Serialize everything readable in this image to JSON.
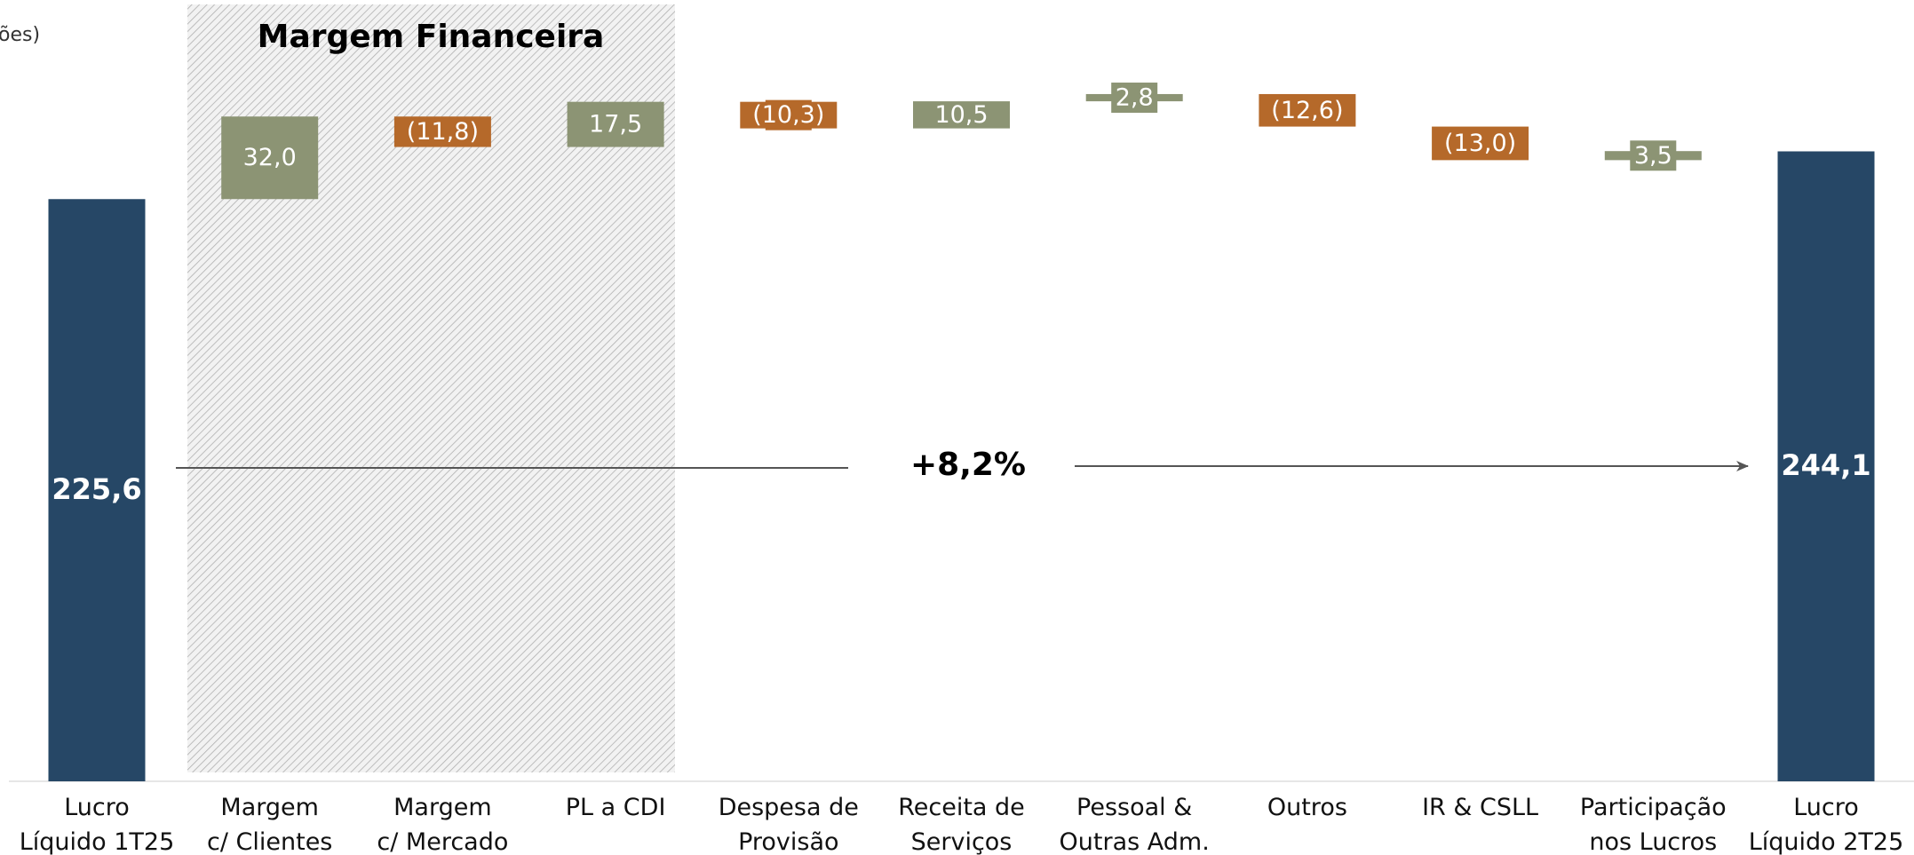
{
  "chart_data": {
    "type": "waterfall",
    "unit_label": "ões)",
    "categories": [
      "Lucro\nLíquido 1T25",
      "Margem\nc/ Clientes",
      "Margem\nc/ Mercado",
      "PL a CDI",
      "Despesa de\nProvisão",
      "Receita de\nServiços",
      "Pessoal &\nOutras Adm.",
      "Outros",
      "IR & CSLL",
      "Participação\nnos Lucros",
      "Lucro\nLíquido 2T25"
    ],
    "values": [
      225.6,
      32.0,
      -11.8,
      17.5,
      -10.3,
      10.5,
      2.8,
      -12.6,
      -13.0,
      3.5,
      244.1
    ],
    "value_labels": [
      "225,6",
      "32,0",
      "(11,8)",
      "17,5",
      "(10,3)",
      "10,5",
      "2,8",
      "(12,6)",
      "(13,0)",
      "3,5",
      "244,1"
    ],
    "colors": [
      "#264766",
      "#8c9474",
      "#b5692a",
      "#8c9474",
      "#b5692a",
      "#8c9474",
      "#8c9474",
      "#b5692a",
      "#b5692a",
      "#8c9474",
      "#264766"
    ],
    "ylim": [
      0,
      300
    ],
    "annotations": {
      "group_title": "Margem Financeira",
      "growth": "+8,2%"
    }
  }
}
